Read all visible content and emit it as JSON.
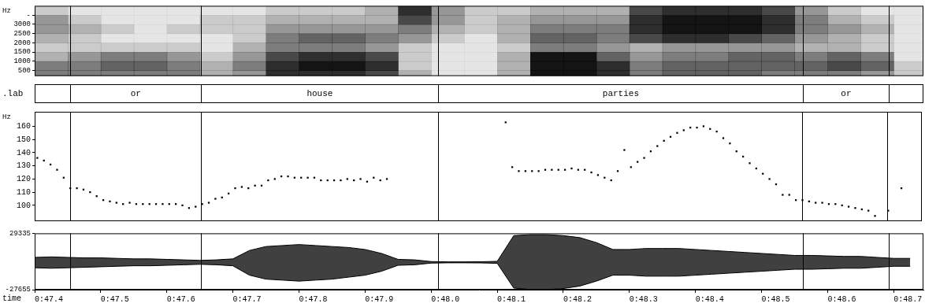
{
  "chart_data": [
    {
      "type": "heatmap",
      "ylabel": "Hz",
      "color": "#000000",
      "xlim": [
        47.4,
        48.745
      ],
      "ylim": [
        200,
        4000
      ],
      "yticks": [
        500,
        1000,
        1500,
        2000,
        2500,
        3000,
        {
          "value": 3500,
          "label": "-"
        }
      ],
      "x_bins": [
        47.4,
        47.45,
        47.5,
        47.55,
        47.6,
        47.65,
        47.7,
        47.75,
        47.8,
        47.85,
        47.9,
        47.95,
        48.0,
        48.05,
        48.1,
        48.15,
        48.2,
        48.25,
        48.3,
        48.35,
        48.4,
        48.45,
        48.5,
        48.55,
        48.6,
        48.65,
        48.7,
        48.75
      ],
      "y_bins": [
        0,
        500,
        1000,
        1500,
        2000,
        2500,
        3000,
        3500,
        4000
      ],
      "cells": [
        [
          5,
          5,
          5,
          5,
          5,
          3,
          4,
          8,
          8,
          8,
          7,
          3,
          1,
          1,
          3,
          9,
          9,
          8,
          5,
          6,
          6,
          6,
          5,
          5,
          5,
          4,
          2
        ],
        [
          5,
          5,
          6,
          6,
          5,
          3,
          5,
          8,
          9,
          9,
          8,
          2,
          1,
          1,
          3,
          9,
          9,
          8,
          5,
          6,
          6,
          6,
          6,
          6,
          7,
          6,
          2
        ],
        [
          3,
          4,
          5,
          5,
          4,
          2,
          4,
          7,
          8,
          8,
          7,
          2,
          1,
          1,
          3,
          9,
          9,
          6,
          4,
          5,
          5,
          6,
          6,
          5,
          6,
          5,
          1
        ],
        [
          2,
          2,
          2,
          2,
          2,
          1,
          3,
          5,
          5,
          5,
          4,
          2,
          1,
          1,
          2,
          5,
          5,
          4,
          3,
          4,
          4,
          4,
          4,
          3,
          3,
          2,
          1
        ],
        [
          3,
          2,
          1,
          1,
          1,
          1,
          2,
          5,
          6,
          6,
          5,
          4,
          2,
          1,
          3,
          6,
          6,
          5,
          7,
          8,
          8,
          7,
          6,
          4,
          3,
          2,
          1
        ],
        [
          4,
          3,
          2,
          1,
          2,
          2,
          2,
          4,
          4,
          4,
          4,
          5,
          3,
          2,
          3,
          5,
          5,
          5,
          8,
          9,
          9,
          9,
          8,
          5,
          4,
          3,
          1
        ],
        [
          4,
          2,
          1,
          1,
          1,
          2,
          2,
          3,
          3,
          3,
          3,
          7,
          4,
          2,
          3,
          4,
          4,
          4,
          8,
          9,
          9,
          9,
          8,
          5,
          3,
          2,
          1
        ],
        [
          2,
          1,
          1,
          1,
          1,
          1,
          1,
          2,
          2,
          2,
          3,
          8,
          4,
          2,
          2,
          3,
          3,
          3,
          7,
          8,
          8,
          8,
          7,
          4,
          2,
          1,
          1
        ]
      ]
    },
    {
      "type": "tier",
      "label": ".lab",
      "xlim": [
        47.4,
        48.745
      ],
      "segments": [
        {
          "start": 47.454,
          "end": 47.652,
          "text": "or"
        },
        {
          "start": 47.652,
          "end": 48.011,
          "text": "house"
        },
        {
          "start": 48.011,
          "end": 48.563,
          "text": "parties"
        },
        {
          "start": 48.563,
          "end": 48.693,
          "text": "or"
        }
      ]
    },
    {
      "type": "scatter",
      "ylabel": "Hz",
      "color": "#000000",
      "marker": "square",
      "xlim": [
        47.4,
        48.745
      ],
      "ylim": [
        88,
        171
      ],
      "yticks": [
        100,
        110,
        120,
        130,
        140,
        150,
        160
      ],
      "x": [
        47.404,
        47.414,
        47.424,
        47.434,
        47.444,
        47.454,
        47.464,
        47.474,
        47.484,
        47.494,
        47.504,
        47.514,
        47.524,
        47.534,
        47.544,
        47.554,
        47.564,
        47.574,
        47.584,
        47.594,
        47.604,
        47.614,
        47.624,
        47.634,
        47.644,
        47.654,
        47.664,
        47.674,
        47.684,
        47.694,
        47.704,
        47.714,
        47.724,
        47.734,
        47.744,
        47.754,
        47.764,
        47.774,
        47.784,
        47.794,
        47.804,
        47.814,
        47.824,
        47.834,
        47.844,
        47.854,
        47.864,
        47.874,
        47.884,
        47.894,
        47.904,
        47.914,
        47.924,
        47.934,
        48.114,
        48.124,
        48.134,
        48.144,
        48.154,
        48.164,
        48.174,
        48.184,
        48.194,
        48.204,
        48.214,
        48.224,
        48.234,
        48.244,
        48.254,
        48.264,
        48.274,
        48.284,
        48.294,
        48.304,
        48.314,
        48.324,
        48.334,
        48.344,
        48.354,
        48.364,
        48.374,
        48.384,
        48.394,
        48.404,
        48.414,
        48.424,
        48.434,
        48.444,
        48.454,
        48.464,
        48.474,
        48.484,
        48.494,
        48.504,
        48.514,
        48.524,
        48.534,
        48.544,
        48.554,
        48.564,
        48.574,
        48.584,
        48.594,
        48.604,
        48.614,
        48.624,
        48.634,
        48.644,
        48.654,
        48.664,
        48.674,
        48.694,
        48.714
      ],
      "values": [
        136,
        134,
        131,
        127,
        121,
        113,
        113,
        112,
        110,
        107,
        104,
        103,
        102,
        101,
        102,
        101,
        101,
        101,
        101,
        101,
        101,
        101,
        100,
        98,
        99,
        101,
        102,
        105,
        106,
        109,
        113,
        114,
        113,
        115,
        115,
        119,
        120,
        122,
        122,
        121,
        121,
        121,
        121,
        119,
        119,
        119,
        119,
        120,
        119,
        120,
        118,
        121,
        119,
        120,
        163,
        129,
        126,
        126,
        126,
        126,
        127,
        127,
        127,
        127,
        128,
        127,
        127,
        125,
        123,
        121,
        119,
        126,
        142,
        129,
        133,
        136,
        141,
        145,
        149,
        152,
        155,
        157,
        159,
        159,
        160,
        158,
        156,
        151,
        147,
        141,
        137,
        132,
        128,
        124,
        120,
        116,
        108,
        108,
        104,
        104,
        103,
        102,
        102,
        101,
        101,
        100,
        99,
        98,
        97,
        96,
        92,
        96,
        113
      ]
    },
    {
      "type": "area",
      "xlabel": "time",
      "color": "#000000",
      "xlim": [
        47.4,
        48.745
      ],
      "ylim": [
        -27655,
        29335
      ],
      "yticks": [
        -27655,
        29335
      ],
      "xticks": [
        {
          "value": 47.4,
          "label": "0:47.4"
        },
        {
          "value": 47.5,
          "label": "0:47.5"
        },
        {
          "value": 47.6,
          "label": "0:47.6"
        },
        {
          "value": 47.7,
          "label": "0:47.7"
        },
        {
          "value": 47.8,
          "label": "0:47.8"
        },
        {
          "value": 47.9,
          "label": "0:47.9"
        },
        {
          "value": 48.0,
          "label": "0:48.0"
        },
        {
          "value": 48.1,
          "label": "0:48.1"
        },
        {
          "value": 48.2,
          "label": "0:48.2"
        },
        {
          "value": 48.3,
          "label": "0:48.3"
        },
        {
          "value": 48.4,
          "label": "0:48.4"
        },
        {
          "value": 48.5,
          "label": "0:48.5"
        },
        {
          "value": 48.6,
          "label": "0:48.6"
        },
        {
          "value": 48.7,
          "label": "0:48.7"
        }
      ],
      "x": [
        47.4,
        47.425,
        47.45,
        47.475,
        47.5,
        47.525,
        47.55,
        47.575,
        47.6,
        47.625,
        47.65,
        47.675,
        47.7,
        47.725,
        47.75,
        47.775,
        47.8,
        47.825,
        47.85,
        47.875,
        47.9,
        47.925,
        47.95,
        47.975,
        48.0,
        48.025,
        48.05,
        48.075,
        48.1,
        48.125,
        48.15,
        48.175,
        48.2,
        48.225,
        48.25,
        48.275,
        48.3,
        48.325,
        48.35,
        48.375,
        48.4,
        48.425,
        48.45,
        48.475,
        48.5,
        48.525,
        48.55,
        48.575,
        48.6,
        48.625,
        48.65,
        48.675,
        48.7,
        48.725
      ],
      "upper": [
        5000,
        5500,
        5000,
        4500,
        4500,
        4000,
        3500,
        3500,
        3000,
        2500,
        2000,
        2500,
        3500,
        12000,
        16000,
        17000,
        18000,
        17000,
        16000,
        15000,
        13000,
        9000,
        3000,
        2500,
        800,
        500,
        500,
        600,
        1000,
        27000,
        28000,
        28000,
        27000,
        25000,
        20000,
        13000,
        13000,
        14000,
        14000,
        14000,
        13000,
        12000,
        11000,
        10000,
        9000,
        8000,
        7000,
        7000,
        6500,
        6000,
        6000,
        5000,
        4000,
        4000
      ],
      "lower": [
        -5500,
        -6000,
        -5500,
        -5000,
        -4500,
        -4000,
        -3500,
        -3500,
        -3000,
        -2500,
        -2000,
        -2500,
        -3500,
        -13000,
        -17000,
        -18000,
        -19000,
        -18000,
        -17000,
        -15000,
        -13000,
        -9000,
        -3000,
        -2500,
        -800,
        -500,
        -500,
        -600,
        -1000,
        -26000,
        -27500,
        -27500,
        -26500,
        -24000,
        -19000,
        -13000,
        -13000,
        -14000,
        -14000,
        -14000,
        -13000,
        -12000,
        -11000,
        -10000,
        -9000,
        -8000,
        -7000,
        -7000,
        -6500,
        -6000,
        -6000,
        -5000,
        -4000,
        -4000
      ]
    }
  ]
}
